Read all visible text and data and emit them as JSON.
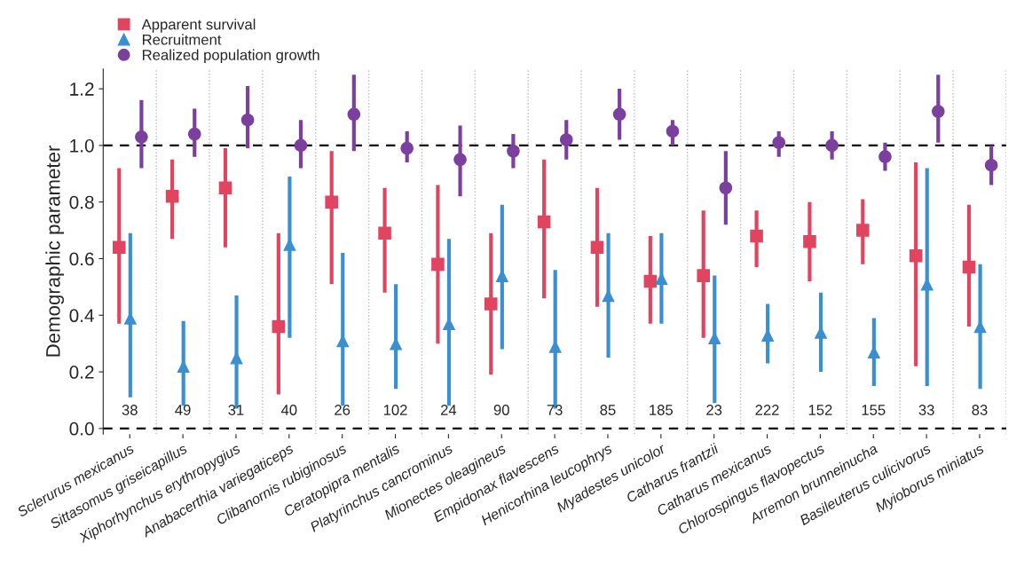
{
  "chart_data": {
    "type": "scatter",
    "ylabel": "Demographic parameter",
    "categories": [
      "Sclerurus mexicanus",
      "Sittasomus griseicapillus",
      "Xiphorhynchus erythropygius",
      "Anabacerthia variegaticeps",
      "Clibanornis rubiginosus",
      "Ceratopipra mentalis",
      "Platyrinchus cancrominus",
      "Mionectes oleagineus",
      "Empidonax flavescens",
      "Henicorhina leucophrys",
      "Myadestes unicolor",
      "Catharus frantzii",
      "Catharus mexicanus",
      "Chlorospingus flavopectus",
      "Arremon brunneinucha",
      "Basileuterus culicivorus",
      "Myioborus miniatus"
    ],
    "series": [
      {
        "name": "Apparent survival",
        "color": "#e0445f",
        "marker": "square",
        "values": [
          0.64,
          0.82,
          0.85,
          0.36,
          0.8,
          0.69,
          0.58,
          0.44,
          0.73,
          0.64,
          0.52,
          0.54,
          0.68,
          0.66,
          0.7,
          0.61,
          0.57
        ],
        "errors": [
          [
            0.37,
            0.92
          ],
          [
            0.67,
            0.95
          ],
          [
            0.64,
            0.99
          ],
          [
            0.12,
            0.69
          ],
          [
            0.51,
            0.98
          ],
          [
            0.48,
            0.85
          ],
          [
            0.3,
            0.86
          ],
          [
            0.19,
            0.69
          ],
          [
            0.46,
            0.95
          ],
          [
            0.43,
            0.85
          ],
          [
            0.37,
            0.68
          ],
          [
            0.32,
            0.77
          ],
          [
            0.57,
            0.77
          ],
          [
            0.52,
            0.8
          ],
          [
            0.58,
            0.81
          ],
          [
            0.22,
            0.94
          ],
          [
            0.36,
            0.79
          ]
        ]
      },
      {
        "name": "Recruitment",
        "color": "#3a8fd0",
        "marker": "triangle",
        "values": [
          0.39,
          0.22,
          0.25,
          0.65,
          0.31,
          0.3,
          0.37,
          0.54,
          0.29,
          0.47,
          0.53,
          0.32,
          0.33,
          0.34,
          0.27,
          0.51,
          0.36
        ],
        "errors": [
          [
            0.11,
            0.69
          ],
          [
            0.08,
            0.38
          ],
          [
            0.07,
            0.47
          ],
          [
            0.32,
            0.89
          ],
          [
            0.08,
            0.62
          ],
          [
            0.14,
            0.51
          ],
          [
            0.08,
            0.67
          ],
          [
            0.28,
            0.79
          ],
          [
            0.07,
            0.56
          ],
          [
            0.25,
            0.69
          ],
          [
            0.37,
            0.69
          ],
          [
            0.09,
            0.54
          ],
          [
            0.23,
            0.44
          ],
          [
            0.2,
            0.48
          ],
          [
            0.15,
            0.39
          ],
          [
            0.15,
            0.92
          ],
          [
            0.14,
            0.58
          ]
        ]
      },
      {
        "name": "Realized population growth",
        "color": "#7b3f9e",
        "marker": "circle",
        "values": [
          1.03,
          1.04,
          1.09,
          1.0,
          1.11,
          0.99,
          0.95,
          0.98,
          1.02,
          1.11,
          1.05,
          0.85,
          1.01,
          1.0,
          0.96,
          1.12,
          0.93
        ],
        "errors": [
          [
            0.92,
            1.16
          ],
          [
            0.96,
            1.13
          ],
          [
            0.99,
            1.21
          ],
          [
            0.92,
            1.09
          ],
          [
            0.98,
            1.25
          ],
          [
            0.94,
            1.05
          ],
          [
            0.82,
            1.07
          ],
          [
            0.92,
            1.04
          ],
          [
            0.95,
            1.09
          ],
          [
            1.02,
            1.2
          ],
          [
            1.0,
            1.09
          ],
          [
            0.72,
            0.98
          ],
          [
            0.96,
            1.05
          ],
          [
            0.95,
            1.05
          ],
          [
            0.91,
            1.01
          ],
          [
            1.01,
            1.25
          ],
          [
            0.86,
            1.0
          ]
        ]
      }
    ],
    "ylim": [
      -0.02,
      1.27
    ],
    "yticks": [
      {
        "value": 0,
        "label": "0.0"
      },
      {
        "value": 0.2,
        "label": "0.2"
      },
      {
        "value": 0.4,
        "label": "0.4"
      },
      {
        "value": 0.6,
        "label": "0.6"
      },
      {
        "value": 0.8,
        "label": "0.8"
      },
      {
        "value": 1.0,
        "label": "1.0"
      },
      {
        "value": 1.2,
        "label": "1.2"
      }
    ],
    "ref_lines": [
      {
        "axis": "y",
        "value": 1.0,
        "color": "#000000",
        "line_style": "dashed"
      },
      {
        "axis": "y",
        "value": 0.0,
        "color": "#000000",
        "line_style": "dashed"
      }
    ],
    "annotations": [
      "38",
      "49",
      "31",
      "40",
      "26",
      "102",
      "24",
      "90",
      "73",
      "85",
      "185",
      "23",
      "222",
      "152",
      "155",
      "33",
      "83"
    ],
    "grid": "x",
    "legend": "top left"
  }
}
